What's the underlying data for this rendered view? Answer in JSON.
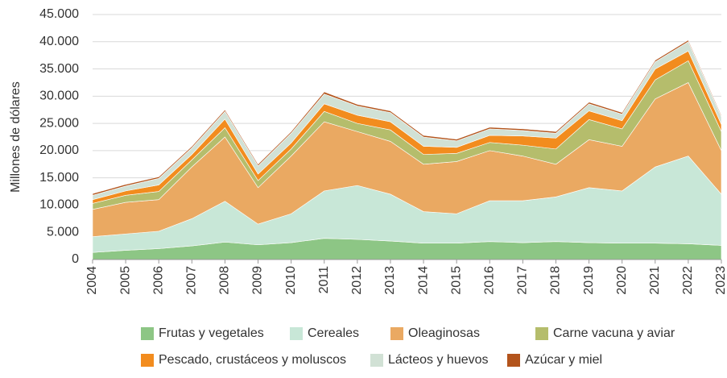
{
  "chart_data": {
    "type": "stacked-area",
    "y_label": "Millones de dólares",
    "x": [
      2004,
      2005,
      2006,
      2007,
      2008,
      2009,
      2010,
      2011,
      2012,
      2013,
      2014,
      2015,
      2016,
      2017,
      2018,
      2019,
      2020,
      2021,
      2022,
      2023
    ],
    "ylim": [
      0,
      45000
    ],
    "yticks": [
      0,
      {
        "value": 5000,
        "label": "5.000"
      },
      {
        "value": 10000,
        "label": "10.000"
      },
      {
        "value": 15000,
        "label": "15.000"
      },
      {
        "value": 20000,
        "label": "20.000"
      },
      {
        "value": 25000,
        "label": "25.000"
      },
      {
        "value": 30000,
        "label": "30.000"
      },
      {
        "value": 35000,
        "label": "35.000"
      },
      {
        "value": 40000,
        "label": "40.000"
      },
      {
        "value": 45000,
        "label": "45.000"
      }
    ],
    "grid": true,
    "series": [
      {
        "name": "Frutas y vegetales",
        "color": "#8dc685",
        "values": [
          1300,
          1700,
          2000,
          2500,
          3200,
          2700,
          3100,
          3900,
          3700,
          3400,
          3000,
          3000,
          3300,
          3100,
          3300,
          3100,
          3000,
          3000,
          2900,
          2600
        ]
      },
      {
        "name": "Cereales",
        "color": "#c8e7d7",
        "values": [
          2900,
          3000,
          3200,
          5000,
          7500,
          3800,
          5300,
          8700,
          9900,
          8600,
          5800,
          5400,
          7500,
          7700,
          8200,
          10100,
          9600,
          14000,
          16100,
          9400
        ]
      },
      {
        "name": "Oleaginosas",
        "color": "#eaa962",
        "values": [
          5000,
          5800,
          5800,
          9500,
          11800,
          6700,
          10600,
          12700,
          9900,
          9700,
          8700,
          9600,
          9200,
          8200,
          6000,
          8800,
          8200,
          12500,
          13500,
          8000
        ]
      },
      {
        "name": "Carne vacuna y aviar",
        "color": "#b5bd6c",
        "values": [
          1100,
          1300,
          1500,
          1300,
          1700,
          1300,
          1300,
          1900,
          1500,
          2100,
          1800,
          1500,
          1500,
          2000,
          2800,
          3700,
          3200,
          3500,
          4000,
          3500
        ]
      },
      {
        "name": "Pescado, crustáceos y moluscos",
        "color": "#f28c1e",
        "values": [
          700,
          800,
          1200,
          1000,
          1600,
          1200,
          1100,
          1400,
          1500,
          1500,
          1500,
          1100,
          1300,
          1700,
          2000,
          1600,
          1500,
          2000,
          1800,
          1300
        ]
      },
      {
        "name": "Lácteos y huevos",
        "color": "#d1e1d5",
        "values": [
          800,
          900,
          1200,
          1200,
          1400,
          1500,
          1800,
          1800,
          1700,
          1700,
          1700,
          1200,
          1200,
          1000,
          900,
          1300,
          1200,
          1300,
          1700,
          1400
        ]
      },
      {
        "name": "Azúcar y miel",
        "color": "#b3541c",
        "values": [
          300,
          300,
          300,
          300,
          300,
          300,
          300,
          400,
          300,
          300,
          300,
          300,
          300,
          300,
          300,
          300,
          300,
          300,
          300,
          300
        ]
      }
    ]
  }
}
